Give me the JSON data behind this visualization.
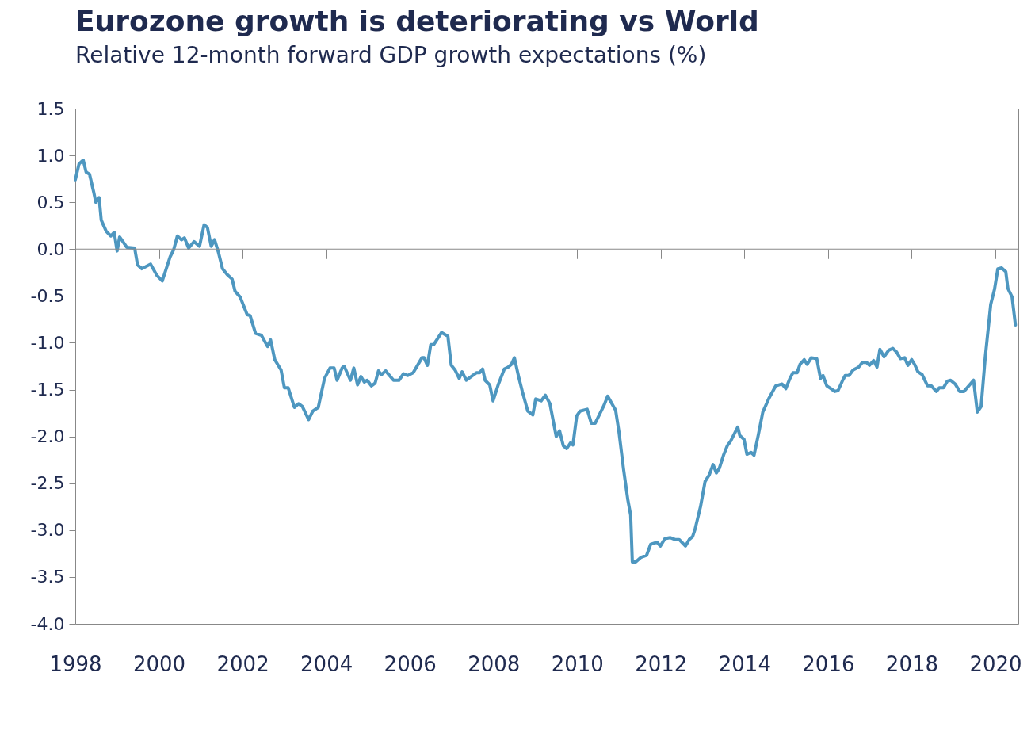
{
  "chart_data": {
    "type": "line",
    "title": "Eurozone growth is deteriorating vs World",
    "subtitle": "Relative 12-month forward GDP growth expectations (%)",
    "x": [
      1998.0,
      1998.09,
      1998.19,
      1998.26,
      1998.34,
      1998.44,
      1998.49,
      1998.57,
      1998.62,
      1998.74,
      1998.85,
      1998.93,
      1999.0,
      1999.06,
      1999.14,
      1999.23,
      1999.42,
      1999.49,
      1999.59,
      1999.8,
      1999.95,
      2000.08,
      2000.27,
      2000.35,
      2000.44,
      2000.54,
      2000.61,
      2000.71,
      2000.84,
      2000.97,
      2001.08,
      2001.16,
      2001.25,
      2001.33,
      2001.42,
      2001.52,
      2001.63,
      2001.75,
      2001.82,
      2001.94,
      2002.11,
      2002.18,
      2002.31,
      2002.45,
      2002.6,
      2002.67,
      2002.77,
      2002.92,
      2003.0,
      2003.09,
      2003.24,
      2003.34,
      2003.43,
      2003.58,
      2003.68,
      2003.81,
      2003.96,
      2004.09,
      2004.19,
      2004.26,
      2004.38,
      2004.43,
      2004.58,
      2004.66,
      2004.75,
      2004.83,
      2004.91,
      2004.98,
      2005.08,
      2005.17,
      2005.25,
      2005.32,
      2005.42,
      2005.61,
      2005.74,
      2005.85,
      2005.95,
      2006.08,
      2006.29,
      2006.34,
      2006.42,
      2006.5,
      2006.57,
      2006.76,
      2006.91,
      2006.99,
      2007.08,
      2007.18,
      2007.25,
      2007.35,
      2007.59,
      2007.67,
      2007.74,
      2007.8,
      2007.91,
      2007.99,
      2008.12,
      2008.26,
      2008.35,
      2008.43,
      2008.5,
      2008.6,
      2008.69,
      2008.82,
      2008.94,
      2009.01,
      2009.14,
      2009.24,
      2009.35,
      2009.5,
      2009.58,
      2009.67,
      2009.75,
      2009.84,
      2009.9,
      2009.99,
      2010.07,
      2010.24,
      2010.34,
      2010.43,
      2010.64,
      2010.73,
      2010.92,
      2011.0,
      2011.11,
      2011.21,
      2011.28,
      2011.32,
      2011.4,
      2011.53,
      2011.66,
      2011.76,
      2011.91,
      2011.99,
      2012.1,
      2012.23,
      2012.34,
      2012.44,
      2012.59,
      2012.68,
      2012.76,
      2012.82,
      2012.95,
      2013.06,
      2013.16,
      2013.25,
      2013.33,
      2013.4,
      2013.5,
      2013.59,
      2013.67,
      2013.84,
      2013.89,
      2013.99,
      2014.06,
      2014.16,
      2014.23,
      2014.33,
      2014.44,
      2014.59,
      2014.75,
      2014.9,
      2014.99,
      2015.09,
      2015.16,
      2015.26,
      2015.33,
      2015.43,
      2015.5,
      2015.6,
      2015.73,
      2015.82,
      2015.88,
      2015.97,
      2016.07,
      2016.16,
      2016.24,
      2016.35,
      2016.41,
      2016.5,
      2016.6,
      2016.73,
      2016.82,
      2016.92,
      2016.99,
      2017.09,
      2017.17,
      2017.24,
      2017.34,
      2017.45,
      2017.55,
      2017.64,
      2017.73,
      2017.83,
      2017.91,
      2018.0,
      2018.08,
      2018.15,
      2018.25,
      2018.38,
      2018.47,
      2018.59,
      2018.66,
      2018.76,
      2018.85,
      2018.93,
      2019.04,
      2019.15,
      2019.25,
      2019.48,
      2019.57,
      2019.66,
      2019.76,
      2019.89,
      2019.98,
      2020.06,
      2020.15,
      2020.25,
      2020.3,
      2020.4,
      2020.48
    ],
    "series": [
      {
        "color": "#4e97c0",
        "values": [
          0.74,
          0.91,
          0.95,
          0.82,
          0.8,
          0.61,
          0.5,
          0.55,
          0.31,
          0.19,
          0.14,
          0.18,
          -0.02,
          0.13,
          0.08,
          0.02,
          0.01,
          -0.17,
          -0.21,
          -0.16,
          -0.28,
          -0.34,
          -0.08,
          -0.01,
          0.14,
          0.1,
          0.12,
          0.01,
          0.08,
          0.03,
          0.26,
          0.23,
          0.03,
          0.1,
          -0.03,
          -0.21,
          -0.27,
          -0.32,
          -0.45,
          -0.51,
          -0.7,
          -0.71,
          -0.9,
          -0.92,
          -1.04,
          -0.97,
          -1.18,
          -1.29,
          -1.48,
          -1.48,
          -1.69,
          -1.65,
          -1.68,
          -1.82,
          -1.73,
          -1.69,
          -1.38,
          -1.27,
          -1.27,
          -1.4,
          -1.27,
          -1.25,
          -1.4,
          -1.27,
          -1.45,
          -1.36,
          -1.42,
          -1.4,
          -1.46,
          -1.43,
          -1.3,
          -1.34,
          -1.3,
          -1.4,
          -1.4,
          -1.33,
          -1.35,
          -1.32,
          -1.16,
          -1.16,
          -1.24,
          -1.02,
          -1.02,
          -0.89,
          -0.93,
          -1.24,
          -1.29,
          -1.38,
          -1.31,
          -1.4,
          -1.32,
          -1.32,
          -1.28,
          -1.4,
          -1.45,
          -1.62,
          -1.44,
          -1.28,
          -1.26,
          -1.23,
          -1.16,
          -1.36,
          -1.52,
          -1.73,
          -1.77,
          -1.6,
          -1.62,
          -1.56,
          -1.65,
          -2.0,
          -1.94,
          -2.1,
          -2.13,
          -2.07,
          -2.09,
          -1.78,
          -1.73,
          -1.71,
          -1.86,
          -1.86,
          -1.67,
          -1.57,
          -1.72,
          -1.95,
          -2.35,
          -2.67,
          -2.84,
          -3.34,
          -3.34,
          -3.29,
          -3.27,
          -3.15,
          -3.13,
          -3.17,
          -3.09,
          -3.08,
          -3.1,
          -3.1,
          -3.17,
          -3.1,
          -3.07,
          -2.99,
          -2.75,
          -2.48,
          -2.41,
          -2.3,
          -2.39,
          -2.34,
          -2.2,
          -2.1,
          -2.05,
          -1.9,
          -1.99,
          -2.03,
          -2.19,
          -2.17,
          -2.2,
          -1.99,
          -1.74,
          -1.59,
          -1.46,
          -1.44,
          -1.49,
          -1.38,
          -1.32,
          -1.32,
          -1.23,
          -1.18,
          -1.23,
          -1.16,
          -1.17,
          -1.38,
          -1.35,
          -1.46,
          -1.49,
          -1.52,
          -1.51,
          -1.4,
          -1.35,
          -1.35,
          -1.29,
          -1.26,
          -1.21,
          -1.21,
          -1.24,
          -1.19,
          -1.26,
          -1.07,
          -1.15,
          -1.08,
          -1.06,
          -1.1,
          -1.17,
          -1.16,
          -1.24,
          -1.18,
          -1.24,
          -1.31,
          -1.34,
          -1.46,
          -1.46,
          -1.52,
          -1.48,
          -1.48,
          -1.41,
          -1.4,
          -1.44,
          -1.52,
          -1.52,
          -1.4,
          -1.74,
          -1.68,
          -1.15,
          -0.59,
          -0.43,
          -0.21,
          -0.2,
          -0.24,
          -0.42,
          -0.51,
          -0.81
        ]
      }
    ],
    "xlim": [
      1998,
      2020.55
    ],
    "xticks": [
      1998,
      2000,
      2002,
      2004,
      2006,
      2008,
      2010,
      2012,
      2014,
      2016,
      2018,
      2020
    ],
    "ylim": [
      -4,
      1.5
    ],
    "yticks": [
      {
        "value": -4,
        "label": "-4.0"
      },
      -3.5,
      {
        "value": -3,
        "label": "-3.0"
      },
      -2.5,
      {
        "value": -2,
        "label": "-2.0"
      },
      -1.5,
      {
        "value": -1,
        "label": "-1.0"
      },
      -0.5,
      {
        "value": 0,
        "label": "0.0"
      },
      0.5,
      {
        "value": 1,
        "label": "1.0"
      },
      1.5
    ],
    "ref_lines": [
      {
        "axis": "y",
        "value": 0,
        "color": "#888888"
      }
    ],
    "grid": false
  }
}
